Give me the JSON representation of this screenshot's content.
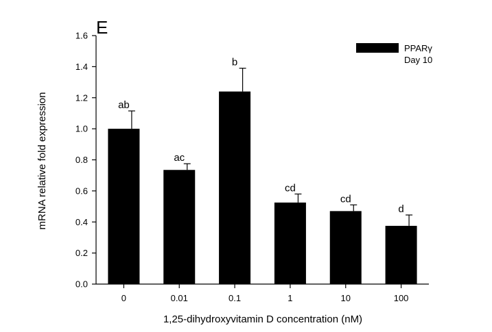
{
  "chart_data": {
    "type": "bar",
    "panel_label": "E",
    "xlabel": "1,25-dihydroxyvitamin D concentration (nM)",
    "ylabel": "mRNA relative fold expression",
    "ylim": [
      0.0,
      1.6
    ],
    "yticks": [
      "0.0",
      "0.2",
      "0.4",
      "0.6",
      "0.8",
      "1.0",
      "1.2",
      "1.4",
      "1.6"
    ],
    "categories": [
      "0",
      "0.01",
      "0.1",
      "1",
      "10",
      "100"
    ],
    "series": [
      {
        "name": "PPARγ",
        "values": [
          1.0,
          0.735,
          1.24,
          0.525,
          0.47,
          0.375
        ],
        "errors": [
          0.115,
          0.04,
          0.15,
          0.055,
          0.04,
          0.07
        ],
        "color": "#000000"
      }
    ],
    "significance_labels": [
      "ab",
      "ac",
      "b",
      "cd",
      "cd",
      "d"
    ],
    "legend": {
      "entries": [
        "PPARγ",
        "Day 10"
      ],
      "position": "top-right"
    },
    "grid": false
  }
}
